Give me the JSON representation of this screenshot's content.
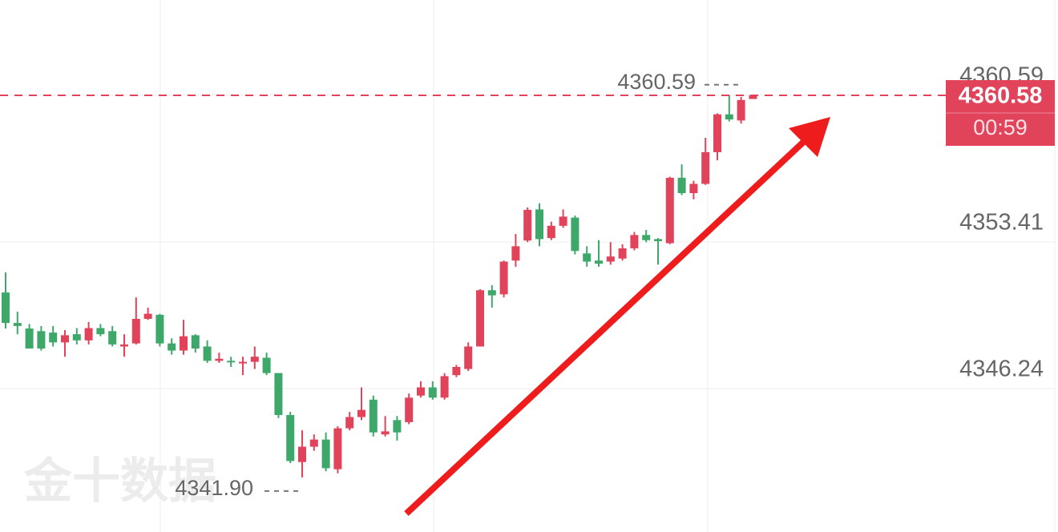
{
  "chart_data": {
    "type": "candlestick",
    "watermark": "金十数据",
    "ylim": [
      4339.23,
      4365.24
    ],
    "yticks": [
      4346.24,
      4353.41,
      4360.59
    ],
    "grid": true,
    "up_color": "#e0435a",
    "down_color": "#3ea86a",
    "current_price": 4360.58,
    "countdown": "00:59",
    "high_annotation": 4360.59,
    "low_annotation": {
      "value": 4341.9,
      "label": "4341.90"
    },
    "candles": [
      [
        4350.94,
        4351.92,
        4349.18,
        4349.45
      ],
      [
        4349.45,
        4350.0,
        4348.9,
        4349.3
      ],
      [
        4349.18,
        4349.4,
        4348.2,
        4348.2
      ],
      [
        4349.05,
        4349.3,
        4348.1,
        4348.2
      ],
      [
        4348.98,
        4349.3,
        4348.3,
        4348.5
      ],
      [
        4348.5,
        4349.1,
        4347.8,
        4348.85
      ],
      [
        4348.9,
        4349.2,
        4348.4,
        4348.6
      ],
      [
        4348.6,
        4349.5,
        4348.4,
        4349.2
      ],
      [
        4349.2,
        4349.4,
        4348.8,
        4348.9
      ],
      [
        4349.05,
        4349.3,
        4348.3,
        4348.4
      ],
      [
        4348.3,
        4348.9,
        4347.8,
        4348.4
      ],
      [
        4348.45,
        4350.7,
        4348.4,
        4349.65
      ],
      [
        4349.65,
        4350.2,
        4349.6,
        4349.9
      ],
      [
        4349.85,
        4349.9,
        4348.3,
        4348.45
      ],
      [
        4348.45,
        4348.7,
        4347.9,
        4348.1
      ],
      [
        4348.1,
        4349.6,
        4347.9,
        4348.8
      ],
      [
        4348.85,
        4348.9,
        4348.0,
        4348.2
      ],
      [
        4348.3,
        4348.6,
        4347.5,
        4347.6
      ],
      [
        4347.6,
        4348.0,
        4347.5,
        4347.7
      ],
      [
        4347.6,
        4347.8,
        4347.3,
        4347.55
      ],
      [
        4347.5,
        4347.8,
        4346.9,
        4347.55
      ],
      [
        4347.55,
        4348.3,
        4347.2,
        4347.8
      ],
      [
        4347.75,
        4348.0,
        4346.9,
        4347.0
      ],
      [
        4347.0,
        4347.0,
        4344.8,
        4344.95
      ],
      [
        4344.95,
        4345.1,
        4342.6,
        4342.7
      ],
      [
        4342.65,
        4344.2,
        4341.9,
        4343.4
      ],
      [
        4343.4,
        4344.0,
        4343.2,
        4343.75
      ],
      [
        4343.75,
        4344.1,
        4342.2,
        4342.35
      ],
      [
        4342.3,
        4344.4,
        4342.1,
        4344.3
      ],
      [
        4344.3,
        4345.1,
        4344.2,
        4344.85
      ],
      [
        4344.85,
        4346.3,
        4344.7,
        4345.2
      ],
      [
        4345.7,
        4345.9,
        4343.9,
        4344.1
      ],
      [
        4344.0,
        4344.9,
        4343.9,
        4344.15
      ],
      [
        4344.7,
        4344.9,
        4343.7,
        4344.1
      ],
      [
        4344.6,
        4346.0,
        4344.5,
        4345.8
      ],
      [
        4345.9,
        4346.6,
        4345.8,
        4346.3
      ],
      [
        4346.3,
        4346.6,
        4345.7,
        4345.8
      ],
      [
        4345.8,
        4347.0,
        4345.7,
        4346.85
      ],
      [
        4346.9,
        4347.4,
        4346.8,
        4347.3
      ],
      [
        4347.2,
        4348.5,
        4347.1,
        4348.3
      ],
      [
        4348.3,
        4351.1,
        4348.3,
        4351.05
      ],
      [
        4351.05,
        4351.3,
        4350.2,
        4350.8
      ],
      [
        4350.85,
        4352.5,
        4350.7,
        4352.45
      ],
      [
        4352.5,
        4353.8,
        4352.2,
        4353.2
      ],
      [
        4353.48,
        4355.1,
        4353.4,
        4354.98
      ],
      [
        4355.0,
        4355.3,
        4353.2,
        4353.55
      ],
      [
        4353.6,
        4354.4,
        4353.5,
        4354.2
      ],
      [
        4354.2,
        4355.0,
        4354.1,
        4354.65
      ],
      [
        4354.6,
        4354.7,
        4352.8,
        4352.97
      ],
      [
        4352.85,
        4353.2,
        4352.2,
        4352.45
      ],
      [
        4352.5,
        4353.5,
        4352.2,
        4352.35
      ],
      [
        4352.45,
        4353.4,
        4352.3,
        4352.7
      ],
      [
        4352.6,
        4353.3,
        4352.5,
        4353.1
      ],
      [
        4353.1,
        4353.9,
        4353.0,
        4353.75
      ],
      [
        4353.75,
        4354.0,
        4353.4,
        4353.5
      ],
      [
        4353.55,
        4353.6,
        4352.3,
        4353.45
      ],
      [
        4353.35,
        4356.6,
        4353.3,
        4356.55
      ],
      [
        4356.55,
        4357.2,
        4355.7,
        4355.8
      ],
      [
        4355.8,
        4356.4,
        4355.5,
        4356.25
      ],
      [
        4356.25,
        4358.5,
        4356.2,
        4357.8
      ],
      [
        4357.8,
        4359.7,
        4357.4,
        4359.65
      ],
      [
        4359.65,
        4360.59,
        4359.3,
        4359.4
      ],
      [
        4359.35,
        4360.5,
        4359.2,
        4360.35
      ],
      [
        4360.4,
        4360.6,
        4360.4,
        4360.58
      ]
    ]
  }
}
